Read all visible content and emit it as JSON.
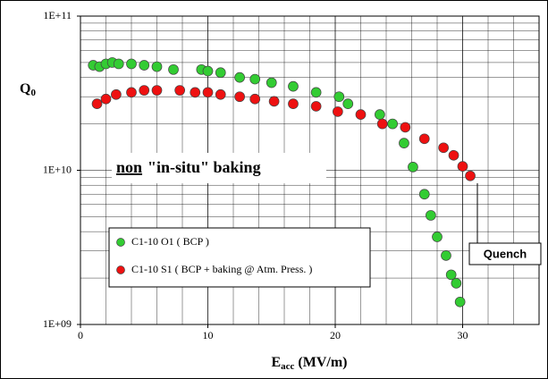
{
  "chart_data": {
    "type": "scatter",
    "log_y": true,
    "grid": true,
    "minor_grid": true,
    "x_label": [
      "E",
      "acc",
      "(MV/m)"
    ],
    "y_label": [
      "Q",
      "0"
    ],
    "annotation": [
      "non",
      "\"in-situ\" baking"
    ],
    "callout": "Quench",
    "legend": "lower left",
    "xlim": [
      0,
      36
    ],
    "xticks": [
      0,
      10,
      20,
      30
    ],
    "ylim": [
      1000000000,
      100000000000
    ],
    "yticks": [
      {
        "value": 1000000000,
        "label": "1E+09"
      },
      {
        "value": 10000000000,
        "label": "1E+10"
      },
      {
        "value": 100000000000,
        "label": "1E+11"
      }
    ],
    "series": [
      {
        "name": "C1-10  O1 ( BCP )",
        "color": "#33cc33",
        "x": [
          1,
          1.5,
          2,
          2.5,
          3,
          4,
          5,
          6,
          7.3,
          9.5,
          10,
          11,
          12.5,
          13.7,
          15,
          16.7,
          18.5,
          20.3,
          21,
          23.5,
          24.5,
          25.4,
          26.1,
          27,
          27.5,
          28,
          28.7,
          29.1,
          29.5,
          29.8
        ],
        "values": [
          48000000000,
          47000000000,
          49000000000,
          50000000000,
          49000000000,
          49000000000,
          48000000000,
          47000000000,
          45000000000,
          45000000000,
          44000000000,
          43000000000,
          40000000000,
          39000000000,
          37000000000,
          35000000000,
          32000000000,
          30000000000,
          27000000000,
          23000000000,
          20000000000,
          15000000000,
          10500000000,
          7000000000,
          5100000000,
          3700000000,
          2800000000,
          2100000000,
          1850000000,
          1400000000
        ]
      },
      {
        "name": "C1-10  S1 ( BCP + baking @ Atm. Press. )",
        "color": "#ee1111",
        "x": [
          1.3,
          2,
          2.8,
          4,
          5,
          6,
          7.8,
          9,
          10,
          11,
          12.5,
          13.7,
          15.2,
          16.7,
          18.5,
          20.2,
          22,
          23.7,
          25.5,
          27,
          28.5,
          29.3,
          30,
          30.6
        ],
        "values": [
          27000000000,
          29000000000,
          31000000000,
          32000000000,
          33000000000,
          33000000000,
          33000000000,
          32000000000,
          32000000000,
          31000000000,
          30000000000,
          29000000000,
          28000000000,
          27000000000,
          26000000000,
          24000000000,
          23000000000,
          20000000000,
          19000000000,
          16000000000,
          14000000000,
          12500000000,
          10600000000,
          9200000000
        ]
      }
    ]
  }
}
